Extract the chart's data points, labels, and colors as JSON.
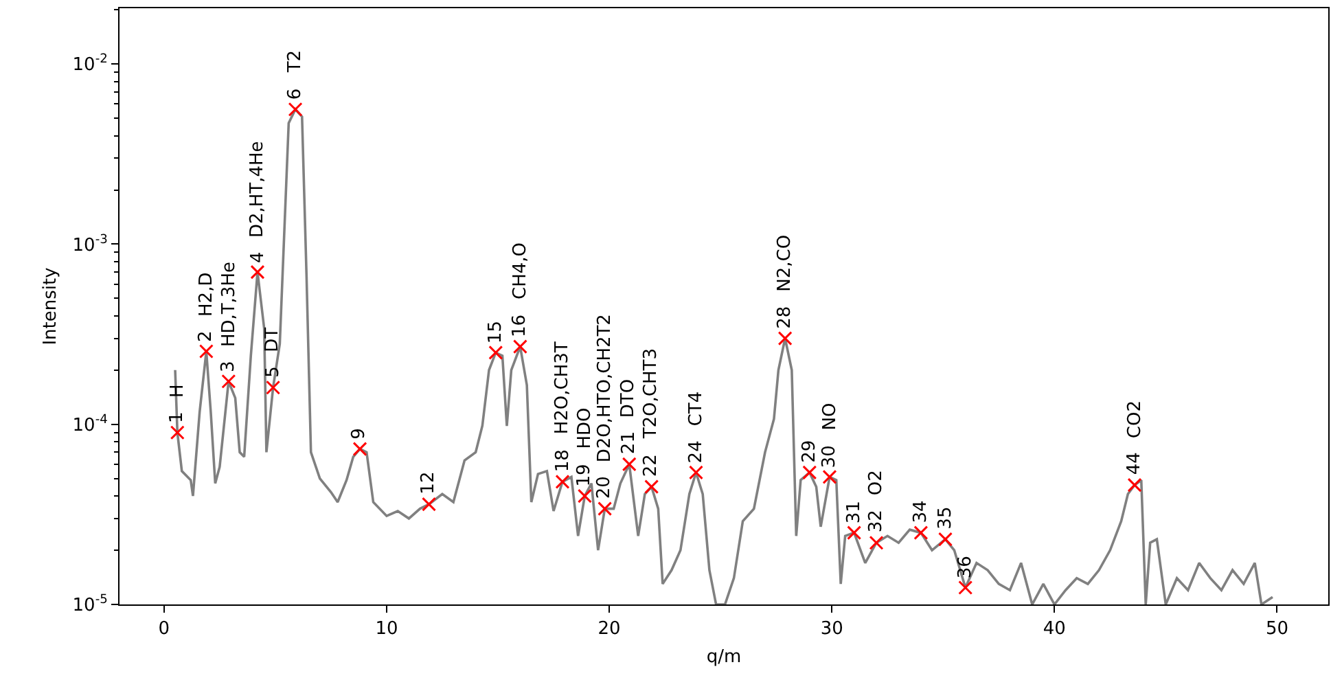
{
  "chart_data": {
    "type": "line",
    "xlabel": "q/m",
    "ylabel": "Intensity",
    "log": "y",
    "grid": false,
    "xlim": [
      -2.0,
      52.3
    ],
    "xticks": [
      0,
      10,
      20,
      30,
      40,
      50
    ],
    "ylim": [
      1e-05,
      0.0204
    ],
    "yticks": [
      {
        "value": 1e-05,
        "label": "10$^{-5}$"
      },
      {
        "value": 2e-05,
        "label": null
      },
      {
        "value": 3e-05,
        "label": null
      },
      {
        "value": 4e-05,
        "label": null
      },
      {
        "value": 5e-05,
        "label": null
      },
      {
        "value": 6e-05,
        "label": null
      },
      {
        "value": 7e-05,
        "label": null
      },
      {
        "value": 8e-05,
        "label": null
      },
      {
        "value": 9e-05,
        "label": null
      },
      {
        "value": 0.0001,
        "label": "10$^{-4}$"
      },
      {
        "value": 0.0002,
        "label": null
      },
      {
        "value": 0.0003,
        "label": null
      },
      {
        "value": 0.0004,
        "label": null
      },
      {
        "value": 0.0005,
        "label": null
      },
      {
        "value": 0.0006,
        "label": null
      },
      {
        "value": 0.0007,
        "label": null
      },
      {
        "value": 0.0008,
        "label": null
      },
      {
        "value": 0.0009,
        "label": null
      },
      {
        "value": 0.001,
        "label": "10$^{-3}$"
      },
      {
        "value": 0.002,
        "label": null
      },
      {
        "value": 0.003,
        "label": null
      },
      {
        "value": 0.004,
        "label": null
      },
      {
        "value": 0.005,
        "label": null
      },
      {
        "value": 0.006,
        "label": null
      },
      {
        "value": 0.007,
        "label": null
      },
      {
        "value": 0.008,
        "label": null
      },
      {
        "value": 0.009,
        "label": null
      },
      {
        "value": 0.01,
        "label": "10$^{-2}$"
      },
      {
        "value": 0.02,
        "label": null
      }
    ],
    "series": [
      {
        "color": "#808080",
        "marker": "none",
        "line_style": "solid",
        "x": [
          0.5,
          0.6,
          0.8,
          1.2,
          1.3,
          1.6,
          1.9,
          2.1,
          2.3,
          2.5,
          2.9,
          3.2,
          3.4,
          3.6,
          3.9,
          4.2,
          4.5,
          4.6,
          4.9,
          5.2,
          5.6,
          5.9,
          6.2,
          6.4,
          6.6,
          7.0,
          7.5,
          7.8,
          8.2,
          8.5,
          8.8,
          9.1,
          9.4,
          10.0,
          10.5,
          11.0,
          11.5,
          11.9,
          12.5,
          13.0,
          13.5,
          14.0,
          14.3,
          14.6,
          14.9,
          15.2,
          15.4,
          15.6,
          16.0,
          16.3,
          16.5,
          16.8,
          17.2,
          17.5,
          17.9,
          18.3,
          18.6,
          18.9,
          19.2,
          19.5,
          19.8,
          20.2,
          20.5,
          20.9,
          21.3,
          21.6,
          21.9,
          22.2,
          22.4,
          22.8,
          23.2,
          23.6,
          23.9,
          24.2,
          24.5,
          24.8,
          25.2,
          25.6,
          26.0,
          26.5,
          27.0,
          27.4,
          27.6,
          27.9,
          28.2,
          28.4,
          28.6,
          29.0,
          29.3,
          29.5,
          29.9,
          30.2,
          30.4,
          30.6,
          31.0,
          31.5,
          32.0,
          32.5,
          33.0,
          33.5,
          34.0,
          34.5,
          35.1,
          35.5,
          36.0,
          36.5,
          37.0,
          37.5,
          38.0,
          38.5,
          39.0,
          39.5,
          40.0,
          40.5,
          41.0,
          41.5,
          42.0,
          42.5,
          43.0,
          43.3,
          43.6,
          43.9,
          44.1,
          44.3,
          44.6,
          45.0,
          45.5,
          46.0,
          46.5,
          47.0,
          47.5,
          48.0,
          48.5,
          49.0,
          49.3,
          49.8
        ],
        "values": [
          0.0002,
          9e-05,
          5.5e-05,
          4.9e-05,
          4e-05,
          0.000117,
          0.000254,
          0.000117,
          4.7e-05,
          5.8e-05,
          0.000173,
          0.00014,
          7e-05,
          6.6e-05,
          0.00024,
          0.0007,
          0.00034,
          7e-05,
          0.00016,
          0.00028,
          0.0047,
          0.0056,
          0.0051,
          0.00068,
          7e-05,
          5e-05,
          4.2e-05,
          3.7e-05,
          4.9e-05,
          6.6e-05,
          7.3e-05,
          7e-05,
          3.7e-05,
          3.1e-05,
          3.3e-05,
          3e-05,
          3.4e-05,
          3.6e-05,
          4.1e-05,
          3.7e-05,
          6.3e-05,
          7e-05,
          9.8e-05,
          0.0002,
          0.00025,
          0.00024,
          9.8e-05,
          0.0002,
          0.00027,
          0.000165,
          3.7e-05,
          5.3e-05,
          5.5e-05,
          3.3e-05,
          4.8e-05,
          5.1e-05,
          2.4e-05,
          4e-05,
          4.7e-05,
          2e-05,
          3.4e-05,
          3.4e-05,
          4.7e-05,
          6e-05,
          2.4e-05,
          4.1e-05,
          4.5e-05,
          3.4e-05,
          1.3e-05,
          1.55e-05,
          2e-05,
          4.1e-05,
          5.4e-05,
          4.1e-05,
          1.55e-05,
          1e-05,
          1e-05,
          1.4e-05,
          2.9e-05,
          3.4e-05,
          7e-05,
          0.000107,
          0.0002,
          0.0003,
          0.0002,
          2.4e-05,
          4.9e-05,
          5.4e-05,
          4.5e-05,
          2.7e-05,
          5.1e-05,
          4.9e-05,
          1.3e-05,
          2.4e-05,
          2.5e-05,
          1.7e-05,
          2.2e-05,
          2.4e-05,
          2.2e-05,
          2.6e-05,
          2.5e-05,
          2e-05,
          2.3e-05,
          2e-05,
          1.24e-05,
          1.7e-05,
          1.55e-05,
          1.3e-05,
          1.2e-05,
          1.7e-05,
          1e-05,
          1.3e-05,
          1e-05,
          1.2e-05,
          1.4e-05,
          1.3e-05,
          1.55e-05,
          2e-05,
          2.9e-05,
          4.1e-05,
          4.6e-05,
          4.9e-05,
          1e-05,
          2.2e-05,
          2.3e-05,
          1e-05,
          1.4e-05,
          1.2e-05,
          1.7e-05,
          1.4e-05,
          1.2e-05,
          1.55e-05,
          1.3e-05,
          1.7e-05,
          1e-05,
          1.1e-05
        ]
      },
      {
        "type": "scatter",
        "color": "#ff0000",
        "marker": "cross",
        "x": [
          0.6,
          1.9,
          2.9,
          4.2,
          4.9,
          5.9,
          8.8,
          11.9,
          14.9,
          16.0,
          17.9,
          18.9,
          19.8,
          20.9,
          21.9,
          23.9,
          27.9,
          29.0,
          29.9,
          31.0,
          32.0,
          34.0,
          35.1,
          36.0,
          43.6
        ],
        "values": [
          9e-05,
          0.000254,
          0.000173,
          0.0007,
          0.00016,
          0.0056,
          7.3e-05,
          3.6e-05,
          0.00025,
          0.00027,
          4.8e-05,
          4e-05,
          3.4e-05,
          6e-05,
          4.5e-05,
          5.4e-05,
          0.0003,
          5.4e-05,
          5.1e-05,
          2.5e-05,
          2.2e-05,
          2.5e-05,
          2.3e-05,
          1.24e-05,
          4.6e-05
        ]
      }
    ],
    "annotations": [
      {
        "text": "1",
        "x": 0.6,
        "y": 9e-05
      },
      {
        "text": "2",
        "x": 1.9,
        "y": 0.000254
      },
      {
        "text": "3",
        "x": 2.9,
        "y": 0.000173
      },
      {
        "text": "4",
        "x": 4.2,
        "y": 0.0007
      },
      {
        "text": "5",
        "x": 4.9,
        "y": 0.00016
      },
      {
        "text": "6",
        "x": 5.9,
        "y": 0.0056
      },
      {
        "text": "9",
        "x": 8.8,
        "y": 7.3e-05
      },
      {
        "text": "12",
        "x": 11.9,
        "y": 3.6e-05
      },
      {
        "text": "15",
        "x": 14.9,
        "y": 0.00025
      },
      {
        "text": "16",
        "x": 16.0,
        "y": 0.00027
      },
      {
        "text": "18",
        "x": 17.9,
        "y": 4.8e-05
      },
      {
        "text": "19",
        "x": 18.9,
        "y": 4e-05
      },
      {
        "text": "20",
        "x": 19.8,
        "y": 3.4e-05
      },
      {
        "text": "21",
        "x": 20.9,
        "y": 6e-05
      },
      {
        "text": "22",
        "x": 21.9,
        "y": 4.5e-05
      },
      {
        "text": "24",
        "x": 23.9,
        "y": 5.4e-05
      },
      {
        "text": "28",
        "x": 27.9,
        "y": 0.0003
      },
      {
        "text": "29",
        "x": 29.0,
        "y": 5.4e-05
      },
      {
        "text": "30",
        "x": 29.9,
        "y": 5.1e-05
      },
      {
        "text": "31",
        "x": 31.0,
        "y": 2.5e-05
      },
      {
        "text": "32",
        "x": 32.0,
        "y": 2.2e-05
      },
      {
        "text": "34",
        "x": 34.0,
        "y": 2.5e-05
      },
      {
        "text": "35",
        "x": 35.1,
        "y": 2.3e-05
      },
      {
        "text": "36",
        "x": 36.0,
        "y": 1.24e-05
      },
      {
        "text": "44",
        "x": 43.6,
        "y": 4.6e-05
      },
      {
        "text": "H",
        "x": 0.6,
        "y": 9e-05
      },
      {
        "text": "H2,D",
        "x": 1.9,
        "y": 0.000254
      },
      {
        "text": "HD,T,3He",
        "x": 2.9,
        "y": 0.000173
      },
      {
        "text": "D2,HT,4He",
        "x": 4.2,
        "y": 0.0007
      },
      {
        "text": "DT",
        "x": 4.9,
        "y": 0.00016
      },
      {
        "text": "T2",
        "x": 5.9,
        "y": 0.0056
      },
      {
        "text": "CH4,O",
        "x": 16.0,
        "y": 0.00027
      },
      {
        "text": "H2O,CH3T",
        "x": 17.9,
        "y": 4.8e-05
      },
      {
        "text": "HDO",
        "x": 18.9,
        "y": 4e-05
      },
      {
        "text": "D2O,HTO,CH2T2",
        "x": 19.8,
        "y": 3.4e-05
      },
      {
        "text": "DTO",
        "x": 20.9,
        "y": 6e-05
      },
      {
        "text": "T2O,CHT3",
        "x": 21.9,
        "y": 4.5e-05
      },
      {
        "text": "CT4",
        "x": 23.9,
        "y": 5.4e-05
      },
      {
        "text": "N2,CO",
        "x": 27.9,
        "y": 0.0003
      },
      {
        "text": "NO",
        "x": 29.9,
        "y": 5.1e-05
      },
      {
        "text": "O2",
        "x": 32.0,
        "y": 2.2e-05
      },
      {
        "text": "CO2",
        "x": 43.6,
        "y": 4.6e-05
      }
    ]
  }
}
